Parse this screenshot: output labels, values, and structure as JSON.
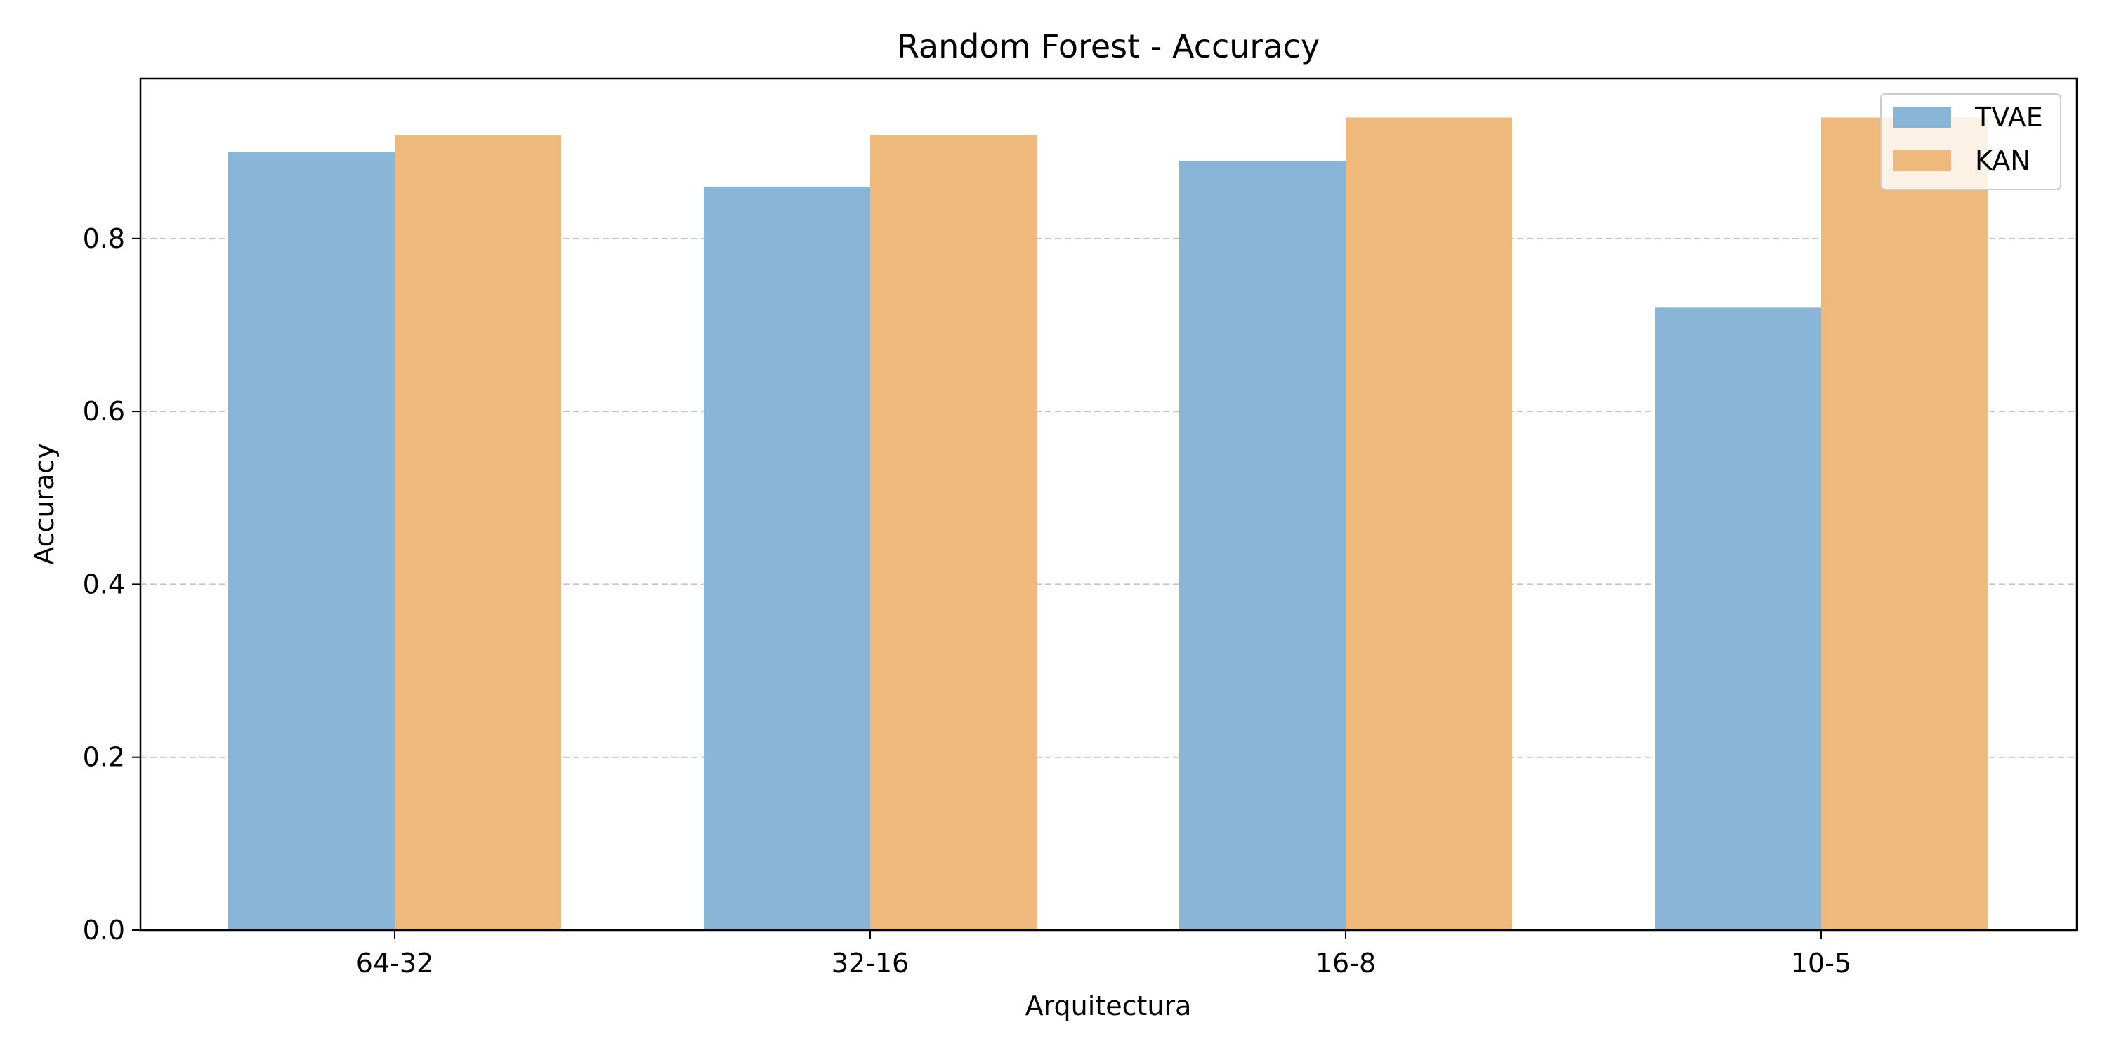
{
  "chart_data": {
    "type": "bar",
    "title": "Random Forest - Accuracy",
    "xlabel": "Arquitectura",
    "ylabel": "Accuracy",
    "categories": [
      "64-32",
      "32-16",
      "16-8",
      "10-5"
    ],
    "series": [
      {
        "name": "TVAE",
        "values": [
          0.9,
          0.86,
          0.89,
          0.72
        ],
        "color": "#89b6d6"
      },
      {
        "name": "KAN",
        "values": [
          0.92,
          0.92,
          0.94,
          0.94
        ],
        "color": "#f0b97c"
      }
    ],
    "ylim": [
      0,
      0.985
    ],
    "yticks": [
      "0.0",
      "0.2",
      "0.4",
      "0.6",
      "0.8"
    ],
    "ytick_values": [
      0.0,
      0.2,
      0.4,
      0.6,
      0.8
    ],
    "grid": "y-dashed",
    "legend_position": "top-right"
  }
}
